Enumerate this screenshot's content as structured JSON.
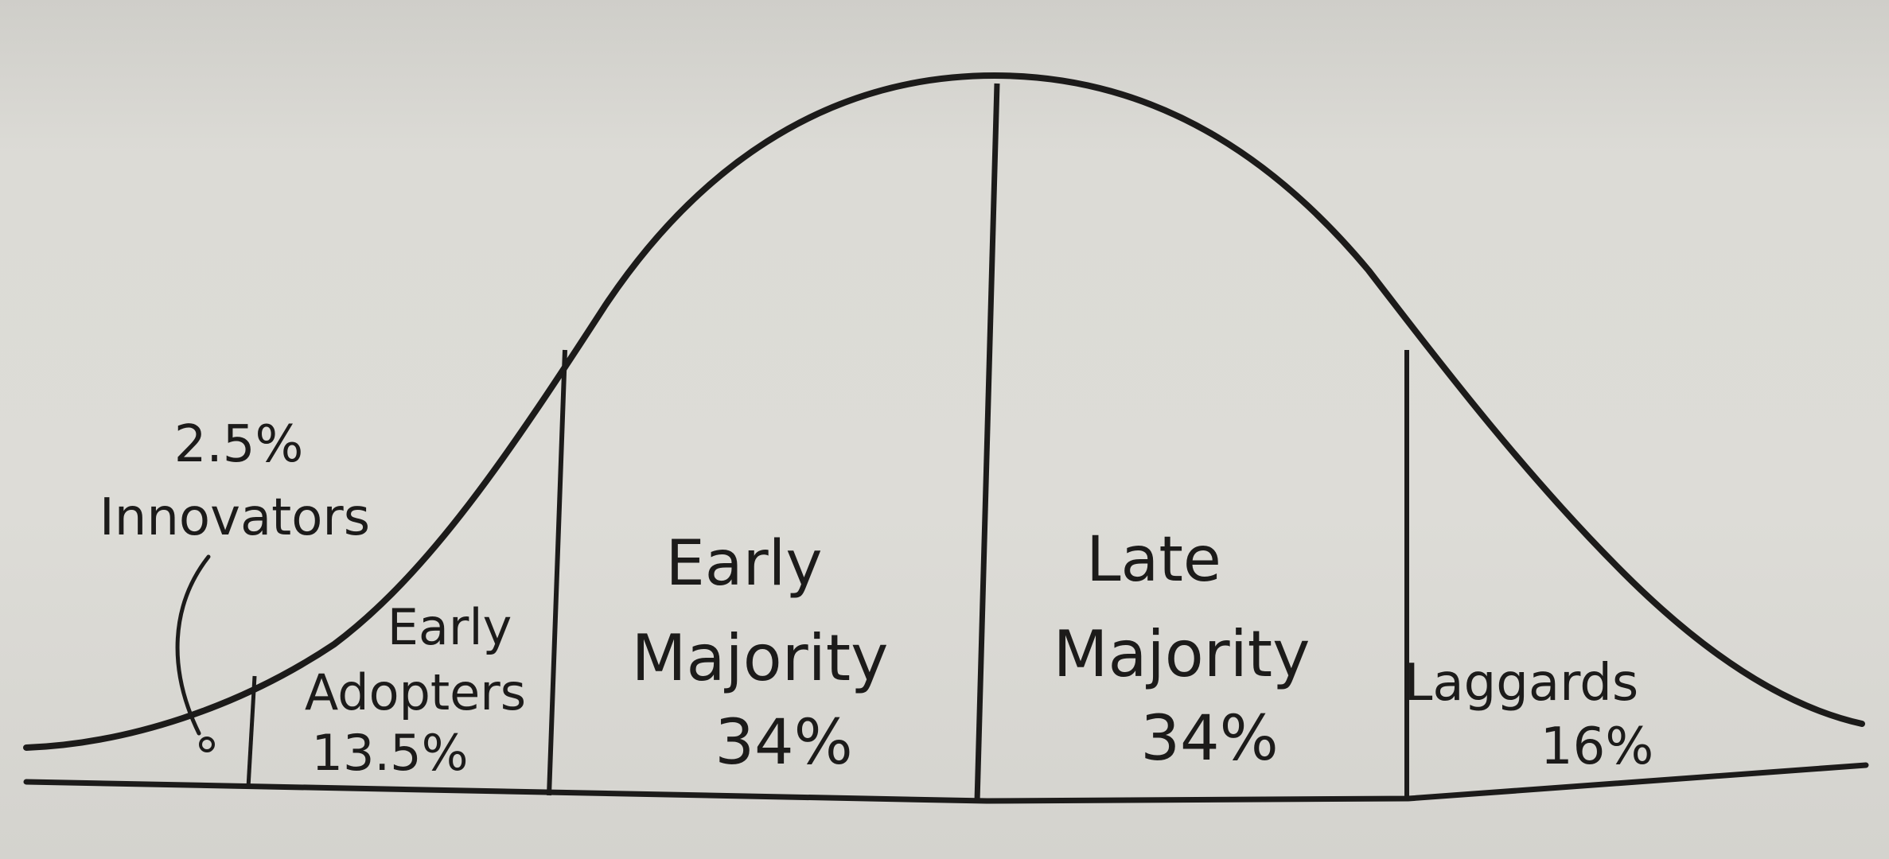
{
  "diagram": {
    "segments": [
      {
        "id": "innovators",
        "percent_text": "2.5%",
        "name_lines": [
          "Innovators"
        ]
      },
      {
        "id": "early_adopters",
        "name_lines": [
          "Early",
          "Adopters"
        ],
        "percent_text": "13.5%"
      },
      {
        "id": "early_majority",
        "name_lines": [
          "Early",
          "Majority"
        ],
        "percent_text": "34%"
      },
      {
        "id": "late_majority",
        "name_lines": [
          "Late",
          "Majority"
        ],
        "percent_text": "34%"
      },
      {
        "id": "laggards",
        "name_lines": [
          "Laggards"
        ],
        "percent_text": "16%"
      }
    ]
  },
  "colors": {
    "paper": "#dcdbd6",
    "ink": "#1c1b1a"
  }
}
